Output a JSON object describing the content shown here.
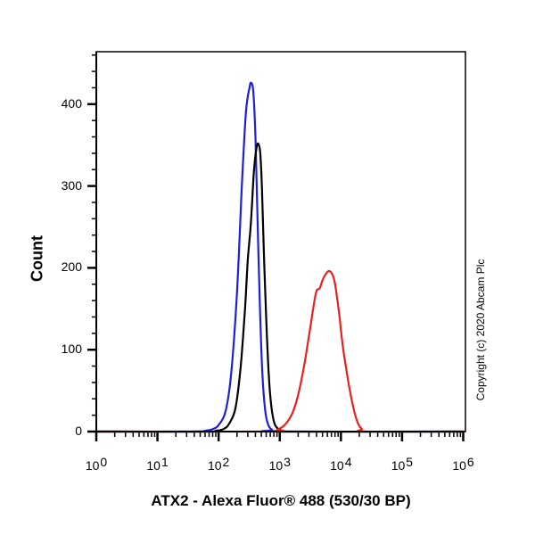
{
  "chart_data": {
    "type": "line",
    "subtype": "flow-cytometry-histogram",
    "title": "",
    "xlabel": "ATX2 - Alexa Fluor® 488 (530/30 BP)",
    "ylabel": "Count",
    "xscale": "log",
    "xlim": [
      1,
      1000000
    ],
    "ylim": [
      0,
      460
    ],
    "x_ticks": [
      {
        "base": "10",
        "exp": "0",
        "value": 1
      },
      {
        "base": "10",
        "exp": "1",
        "value": 10
      },
      {
        "base": "10",
        "exp": "2",
        "value": 100
      },
      {
        "base": "10",
        "exp": "3",
        "value": 1000
      },
      {
        "base": "10",
        "exp": "4",
        "value": 10000
      },
      {
        "base": "10",
        "exp": "5",
        "value": 100000
      },
      {
        "base": "10",
        "exp": "6",
        "value": 1000000
      }
    ],
    "y_ticks": [
      0,
      100,
      200,
      300,
      400
    ],
    "grid": false,
    "legend": null,
    "annotation": "Copyright (c) 2020 Abcam Plc",
    "series": [
      {
        "name": "blue",
        "color": "#1f1fd6",
        "points": [
          [
            1,
            0
          ],
          [
            40,
            0
          ],
          [
            60,
            1
          ],
          [
            80,
            3
          ],
          [
            100,
            8
          ],
          [
            130,
            25
          ],
          [
            160,
            70
          ],
          [
            200,
            170
          ],
          [
            240,
            300
          ],
          [
            280,
            390
          ],
          [
            320,
            420
          ],
          [
            340,
            426
          ],
          [
            370,
            415
          ],
          [
            400,
            360
          ],
          [
            430,
            270
          ],
          [
            470,
            160
          ],
          [
            520,
            70
          ],
          [
            580,
            25
          ],
          [
            650,
            8
          ],
          [
            750,
            2
          ],
          [
            900,
            0
          ],
          [
            1000000,
            0
          ]
        ]
      },
      {
        "name": "black",
        "color": "#000000",
        "points": [
          [
            1,
            0
          ],
          [
            60,
            0
          ],
          [
            90,
            1
          ],
          [
            120,
            3
          ],
          [
            150,
            10
          ],
          [
            190,
            30
          ],
          [
            230,
            80
          ],
          [
            270,
            150
          ],
          [
            300,
            210
          ],
          [
            330,
            245
          ],
          [
            350,
            275
          ],
          [
            380,
            320
          ],
          [
            420,
            348
          ],
          [
            450,
            351
          ],
          [
            480,
            340
          ],
          [
            510,
            300
          ],
          [
            550,
            220
          ],
          [
            600,
            140
          ],
          [
            660,
            70
          ],
          [
            730,
            30
          ],
          [
            820,
            10
          ],
          [
            950,
            3
          ],
          [
            1100,
            1
          ],
          [
            1300,
            0
          ],
          [
            1000000,
            0
          ]
        ]
      },
      {
        "name": "red",
        "color": "#e8201e",
        "points": [
          [
            1,
            0
          ],
          [
            700,
            0
          ],
          [
            900,
            2
          ],
          [
            1200,
            8
          ],
          [
            1600,
            22
          ],
          [
            2000,
            45
          ],
          [
            2500,
            80
          ],
          [
            2900,
            110
          ],
          [
            3200,
            130
          ],
          [
            3600,
            155
          ],
          [
            4000,
            172
          ],
          [
            4500,
            175
          ],
          [
            5000,
            185
          ],
          [
            5600,
            192
          ],
          [
            6300,
            196
          ],
          [
            7000,
            194
          ],
          [
            7800,
            185
          ],
          [
            8600,
            165
          ],
          [
            9500,
            140
          ],
          [
            10500,
            110
          ],
          [
            12000,
            80
          ],
          [
            14000,
            50
          ],
          [
            16500,
            25
          ],
          [
            19000,
            10
          ],
          [
            22000,
            3
          ],
          [
            26000,
            0
          ],
          [
            1000000,
            0
          ]
        ]
      }
    ],
    "peaks": {
      "blue": {
        "x": 340,
        "count": 426
      },
      "black": {
        "x": 450,
        "count": 351
      },
      "red": {
        "x": 6300,
        "count": 196
      }
    }
  },
  "labels": {
    "ylabel": "Count",
    "xlabel": "ATX2 - Alexa Fluor® 488 (530/30 BP)",
    "copyright": "Copyright (c) 2020 Abcam Plc"
  }
}
